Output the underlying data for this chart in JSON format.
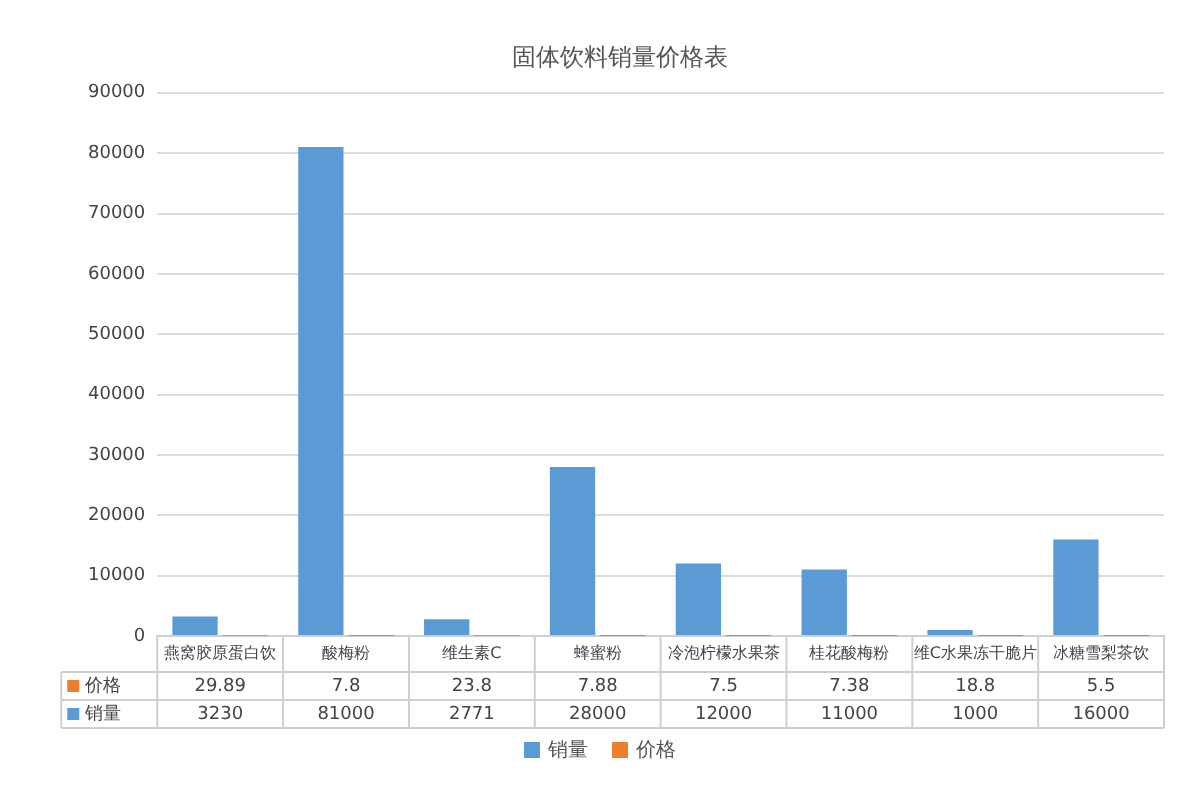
{
  "chart_data": {
    "type": "bar",
    "title": "固体饮料销量价格表",
    "categories": [
      "燕窝胶原蛋白饮",
      "酸梅粉",
      "维生素C",
      "蜂蜜粉",
      "冷泡柠檬水果茶",
      "桂花酸梅粉",
      "维C水果冻干脆片",
      "冰糖雪梨茶饮"
    ],
    "series": [
      {
        "name": "销量",
        "color": "#5b9bd5",
        "values": [
          3230,
          81000,
          2771,
          28000,
          12000,
          11000,
          1000,
          16000
        ]
      },
      {
        "name": "价格",
        "color": "#ed7d31",
        "values": [
          29.89,
          7.8,
          23.8,
          7.88,
          7.5,
          7.38,
          18.8,
          5.5
        ]
      }
    ],
    "ylim": [
      0,
      90000
    ],
    "yticks": [
      0,
      10000,
      20000,
      30000,
      40000,
      50000,
      60000,
      70000,
      80000,
      90000
    ],
    "grid": "y",
    "legend": "bottom",
    "data_labels": true
  }
}
